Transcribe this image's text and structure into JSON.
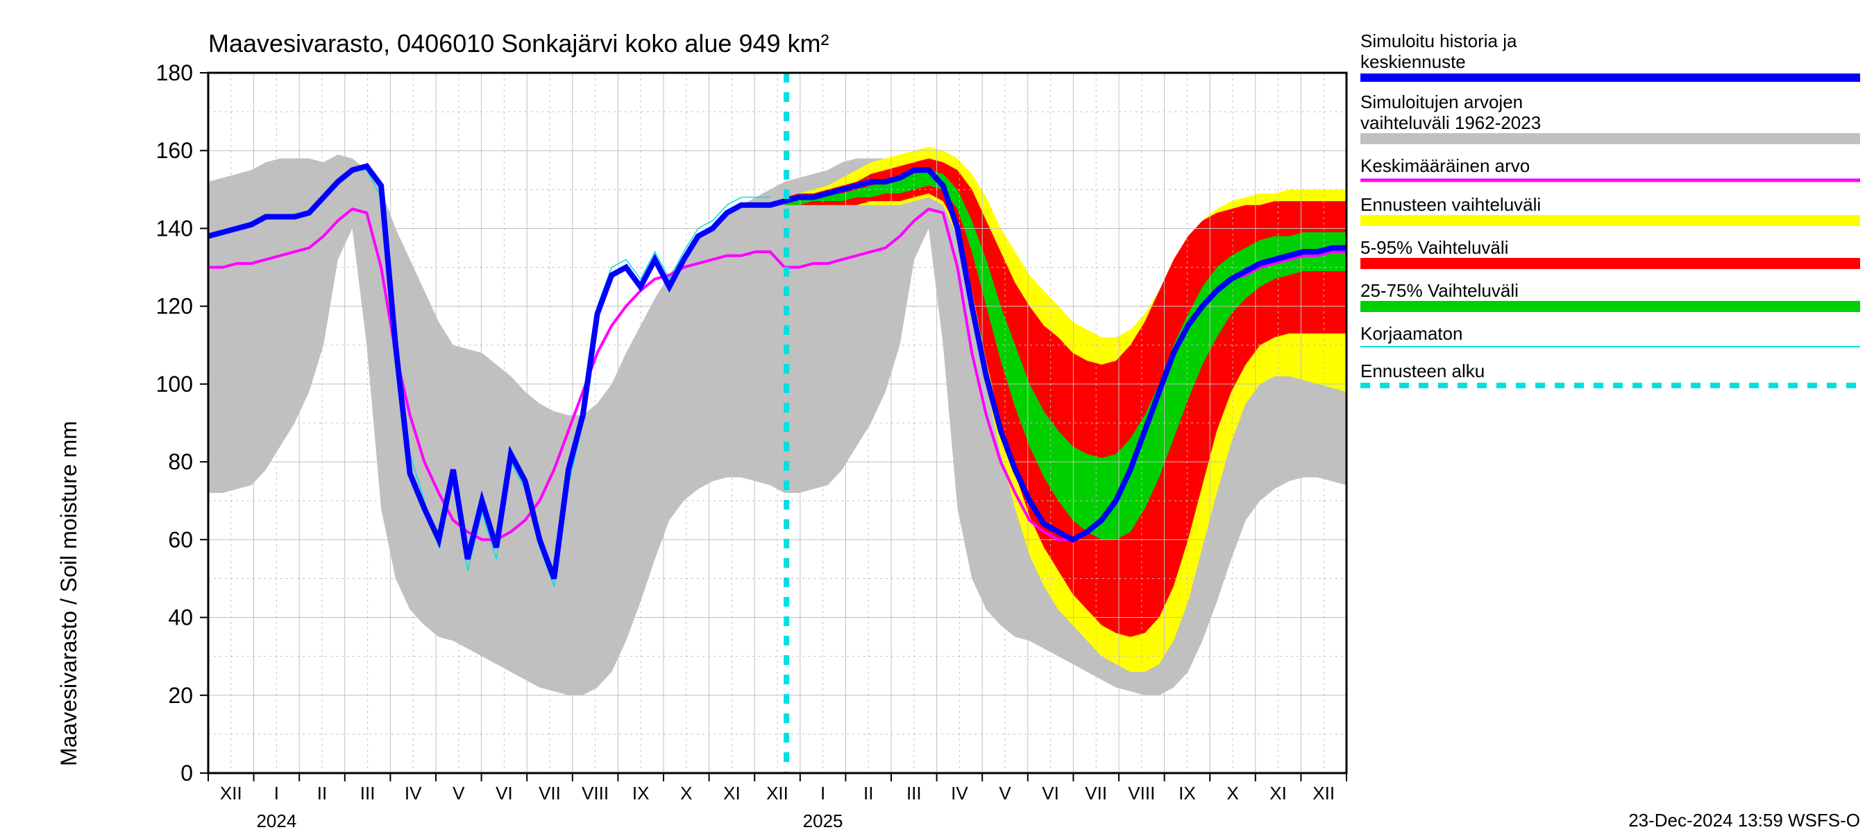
{
  "chart": {
    "type": "line-band-forecast",
    "title": "Maavesivarasto, 0406010 Sonkajärvi koko alue 949 km²",
    "title_fontsize": 36,
    "ylabel": "Maavesivarasto / Soil moisture   mm",
    "ylabel_fontsize": 32,
    "ylim": [
      0,
      180
    ],
    "ytick_step": 20,
    "ytick_labels": [
      "0",
      "20",
      "40",
      "60",
      "80",
      "100",
      "120",
      "140",
      "160",
      "180"
    ],
    "ytick_fontsize": 32,
    "x_months": [
      "XII",
      "I",
      "II",
      "III",
      "IV",
      "V",
      "VI",
      "VII",
      "VIII",
      "IX",
      "X",
      "XI",
      "XII",
      "I",
      "II",
      "III",
      "IV",
      "V",
      "VI",
      "VII",
      "VIII",
      "IX",
      "X",
      "XI",
      "XII"
    ],
    "x_month_fontsize": 26,
    "x_year_labels": {
      "2024": 1,
      "2025": 13
    },
    "x_year_fontsize": 26,
    "forecast_start_month_index": 12.7,
    "background_color": "#ffffff",
    "grid_color": "#c0c0c0",
    "colors": {
      "history_band": "#c0c0c0",
      "blue_line": "#0000ff",
      "magenta_line": "#ff00ff",
      "yellow_band": "#ffff00",
      "red_band": "#ff0000",
      "green_band": "#00d000",
      "cyan_dash": "#00e0e0",
      "cyan_thin": "#00e0e0"
    },
    "line_widths": {
      "blue": 8,
      "magenta": 4,
      "cyan_thin": 1.5,
      "cyan_dash": 8
    },
    "cyan_dash_pattern": "14 14",
    "footer_text": "23-Dec-2024 13:59 WSFS-O",
    "footer_fontsize": 26,
    "legend": [
      {
        "key": "blue",
        "label": "Simuloitu historia ja keskiennuste"
      },
      {
        "key": "gray",
        "label": "Simuloitujen arvojen vaihteluväli 1962-2023"
      },
      {
        "key": "magenta",
        "label": "Keskimääräinen arvo"
      },
      {
        "key": "yellow",
        "label": "Ennusteen vaihteluväli"
      },
      {
        "key": "red",
        "label": "5-95% Vaihteluväli"
      },
      {
        "key": "green",
        "label": "25-75% Vaihteluväli"
      },
      {
        "key": "cyan_thin",
        "label": "Korjaamaton"
      },
      {
        "key": "cyan_dash",
        "label": "Ennusteen alku"
      }
    ],
    "legend_fontsize": 26,
    "history_band": {
      "upper": [
        152,
        153,
        154,
        155,
        157,
        158,
        158,
        158,
        157,
        159,
        158,
        155,
        150,
        140,
        132,
        124,
        116,
        110,
        109,
        108,
        105,
        102,
        98,
        95,
        93,
        92,
        92,
        95,
        100,
        108,
        115,
        122,
        128,
        133,
        137,
        140,
        143,
        146,
        148,
        150,
        152,
        153,
        154,
        155,
        157,
        158,
        158,
        158,
        157,
        159,
        158,
        155,
        150,
        140,
        132,
        124,
        116,
        110,
        109,
        108,
        105,
        102,
        98,
        95,
        93,
        92,
        92,
        95,
        100,
        108,
        115,
        122,
        128,
        133,
        137,
        140,
        143,
        146,
        148,
        150
      ],
      "lower": [
        72,
        72,
        73,
        74,
        78,
        84,
        90,
        98,
        110,
        132,
        140,
        110,
        68,
        50,
        42,
        38,
        35,
        34,
        32,
        30,
        28,
        26,
        24,
        22,
        21,
        20,
        20,
        22,
        26,
        34,
        44,
        55,
        65,
        70,
        73,
        75,
        76,
        76,
        75,
        74,
        72,
        72,
        73,
        74,
        78,
        84,
        90,
        98,
        110,
        132,
        140,
        110,
        68,
        50,
        42,
        38,
        35,
        34,
        32,
        30,
        28,
        26,
        24,
        22,
        21,
        20,
        20,
        22,
        26,
        34,
        44,
        55,
        65,
        70,
        73,
        75,
        76,
        76,
        75,
        74
      ]
    },
    "blue_line_values": [
      138,
      139,
      140,
      141,
      143,
      143,
      143,
      144,
      148,
      152,
      155,
      156,
      151,
      110,
      77,
      68,
      60,
      78,
      55,
      70,
      58,
      82,
      75,
      60,
      50,
      78,
      92,
      118,
      128,
      130,
      125,
      132,
      125,
      132,
      138,
      140,
      144,
      146,
      146,
      146,
      147,
      148,
      148,
      149,
      150,
      151,
      152,
      152,
      153,
      155,
      155,
      151,
      140,
      120,
      102,
      88,
      78,
      70,
      64,
      62,
      60,
      62,
      65,
      70,
      78,
      88,
      98,
      108,
      115,
      120,
      124,
      127,
      129,
      131,
      132,
      133,
      134,
      134,
      135,
      135
    ],
    "magenta_line_values": [
      130,
      130,
      131,
      131,
      132,
      133,
      134,
      135,
      138,
      142,
      145,
      144,
      130,
      108,
      92,
      80,
      72,
      65,
      62,
      60,
      60,
      62,
      65,
      70,
      78,
      88,
      98,
      108,
      115,
      120,
      124,
      127,
      128,
      130,
      131,
      132,
      133,
      133,
      134,
      134,
      130,
      130,
      131,
      131,
      132,
      133,
      134,
      135,
      138,
      142,
      145,
      144,
      130,
      108,
      92,
      80,
      72,
      65,
      62,
      60,
      60,
      62,
      65,
      70,
      78,
      88,
      98,
      108,
      115,
      120,
      124,
      127,
      128,
      130,
      131,
      132,
      133,
      133,
      134,
      134
    ],
    "cyan_thin_values": [
      138,
      139,
      140,
      141,
      143,
      143,
      143,
      144,
      148,
      152,
      155,
      155,
      148,
      105,
      82,
      70,
      58,
      76,
      52,
      67,
      55,
      80,
      73,
      58,
      48,
      74,
      90,
      120,
      130,
      132,
      127,
      134,
      127,
      134,
      140,
      142,
      146,
      148,
      148,
      148
    ],
    "forecast_bands_start_index": 40,
    "yellow_band": {
      "upper": [
        148,
        149,
        150,
        151,
        153,
        155,
        157,
        158,
        159,
        160,
        161,
        160,
        158,
        154,
        148,
        140,
        134,
        128,
        124,
        120,
        116,
        114,
        112,
        112,
        114,
        118,
        124,
        132,
        138,
        142,
        145,
        147,
        148,
        149,
        149,
        150,
        150,
        150,
        150,
        150
      ],
      "lower": [
        146,
        146,
        146,
        146,
        146,
        146,
        146,
        146,
        146,
        147,
        148,
        146,
        138,
        120,
        100,
        82,
        68,
        56,
        48,
        42,
        38,
        34,
        30,
        28,
        26,
        26,
        28,
        34,
        44,
        58,
        72,
        85,
        95,
        100,
        102,
        102,
        101,
        100,
        99,
        98
      ]
    },
    "red_band": {
      "upper": [
        148,
        149,
        149,
        150,
        151,
        152,
        154,
        155,
        156,
        157,
        158,
        157,
        155,
        150,
        142,
        134,
        126,
        120,
        115,
        112,
        108,
        106,
        105,
        106,
        110,
        116,
        124,
        132,
        138,
        142,
        144,
        145,
        146,
        146,
        147,
        147,
        147,
        147,
        147,
        147
      ],
      "lower": [
        146,
        146,
        146,
        146,
        146,
        146,
        147,
        147,
        147,
        148,
        149,
        147,
        140,
        124,
        106,
        90,
        77,
        66,
        58,
        52,
        46,
        42,
        38,
        36,
        35,
        36,
        40,
        48,
        60,
        74,
        88,
        98,
        105,
        110,
        112,
        113,
        113,
        113,
        113,
        113
      ]
    },
    "green_band": {
      "upper": [
        147,
        148,
        148,
        149,
        149,
        150,
        151,
        152,
        153,
        154,
        155,
        154,
        150,
        142,
        132,
        120,
        110,
        100,
        93,
        88,
        84,
        82,
        81,
        82,
        86,
        92,
        100,
        110,
        118,
        125,
        130,
        133,
        135,
        137,
        138,
        138,
        139,
        139,
        139,
        139
      ],
      "lower": [
        146,
        146,
        147,
        147,
        147,
        148,
        148,
        149,
        149,
        150,
        151,
        150,
        145,
        134,
        120,
        106,
        94,
        84,
        76,
        70,
        65,
        62,
        60,
        60,
        62,
        68,
        76,
        86,
        96,
        105,
        112,
        118,
        122,
        125,
        127,
        128,
        129,
        129,
        129,
        129
      ]
    }
  }
}
